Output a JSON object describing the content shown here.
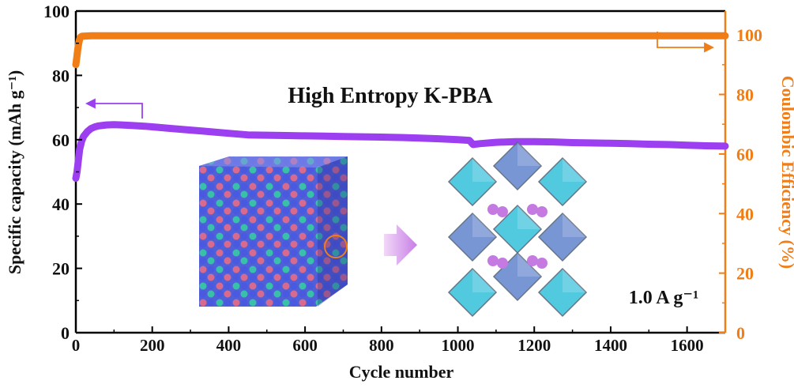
{
  "chart_data": {
    "type": "line",
    "title": "High Entropy  K-PBA",
    "annotation": "1.0 A g⁻¹",
    "xlabel": "Cycle number",
    "ylabel": "Specific capacity (mAh g⁻¹)",
    "y2label": "Coulombic Efficiency (%)",
    "xlim": [
      0,
      1700
    ],
    "ylim": [
      0,
      100
    ],
    "y2lim": [
      0,
      108
    ],
    "xticks": [
      0,
      200,
      400,
      600,
      800,
      1000,
      1200,
      1400,
      1600
    ],
    "yticks": [
      0,
      20,
      40,
      60,
      80,
      100
    ],
    "y2ticks": [
      0,
      20,
      40,
      60,
      80,
      100
    ],
    "grid": false,
    "colors": {
      "capacity": "#9b3ff0",
      "efficiency": "#f07d16",
      "axis_left": "#000000",
      "axis_right": "#f07d16"
    },
    "series": [
      {
        "axis": "left",
        "x": [
          0,
          3,
          6,
          10,
          15,
          20,
          30,
          40,
          50,
          60,
          80,
          100,
          120,
          150,
          180,
          200,
          250,
          300,
          350,
          400,
          450,
          500,
          550,
          600,
          650,
          700,
          750,
          800,
          850,
          900,
          950,
          1000,
          1030,
          1040,
          1045,
          1060,
          1100,
          1150,
          1200,
          1250,
          1300,
          1350,
          1400,
          1450,
          1500,
          1550,
          1600,
          1650,
          1700
        ],
        "y": [
          48,
          50,
          53,
          57,
          59.5,
          61,
          62.5,
          63.5,
          64,
          64.3,
          64.6,
          64.7,
          64.6,
          64.4,
          64.2,
          64,
          63.5,
          63,
          62.5,
          62,
          61.5,
          61.4,
          61.3,
          61.2,
          61.1,
          61,
          60.9,
          60.8,
          60.7,
          60.5,
          60.3,
          60,
          59.8,
          58.5,
          58.6,
          58.8,
          59.2,
          59.4,
          59.4,
          59.3,
          59.1,
          59,
          58.9,
          58.8,
          58.6,
          58.5,
          58.3,
          58.1,
          58
        ]
      },
      {
        "axis": "right",
        "x": [
          0,
          2,
          4,
          6,
          8,
          10,
          12,
          15,
          20,
          40,
          100,
          200,
          400,
          600,
          800,
          1000,
          1200,
          1400,
          1600,
          1700
        ],
        "y": [
          90,
          92,
          94,
          96,
          97.5,
          98.5,
          99.2,
          99.5,
          99.6,
          99.7,
          99.7,
          99.7,
          99.7,
          99.7,
          99.7,
          99.7,
          99.7,
          99.7,
          99.7,
          99.7
        ]
      }
    ]
  }
}
